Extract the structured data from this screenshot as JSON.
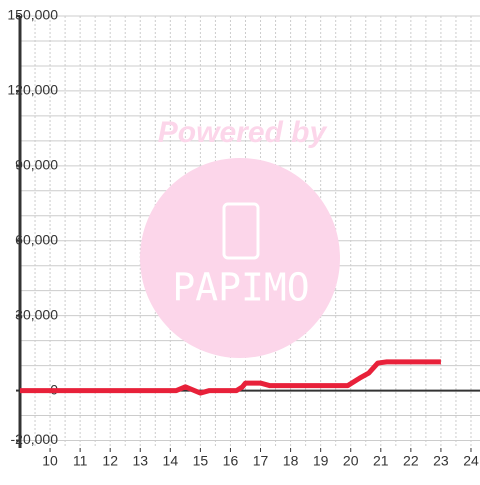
{
  "chart_data": {
    "type": "line",
    "watermark": {
      "line1": "Powered by",
      "line2": "PAPIMO"
    },
    "xlim": [
      9,
      24.3
    ],
    "ylim": [
      -23000,
      150000
    ],
    "xticks": [
      10,
      11,
      12,
      13,
      14,
      15,
      16,
      17,
      18,
      19,
      20,
      21,
      22,
      23,
      24
    ],
    "yticks": [
      {
        "value": 150000,
        "label": "150,000"
      },
      {
        "value": 120000,
        "label": "120,000"
      },
      {
        "value": 90000,
        "label": "90,000"
      },
      {
        "value": 60000,
        "label": "60,000"
      },
      {
        "value": 30000,
        "label": "30,000"
      },
      0,
      {
        "value": -20000,
        "label": "-20,000"
      }
    ],
    "minor_grid": {
      "x_step": 0.5,
      "y_step": 10000
    },
    "grid": true,
    "series": [
      {
        "color": "#e8213a",
        "x": [
          9,
          14.2,
          14.5,
          14.8,
          15,
          15.3,
          16.2,
          16.4,
          16.5,
          17,
          17.3,
          19.9,
          20.3,
          20.6,
          20.9,
          21.2,
          23
        ],
        "values": [
          0,
          0,
          1500,
          0,
          -1000,
          0,
          0,
          1500,
          3000,
          3000,
          2000,
          2000,
          5000,
          7000,
          11000,
          11500,
          11500
        ]
      }
    ]
  }
}
